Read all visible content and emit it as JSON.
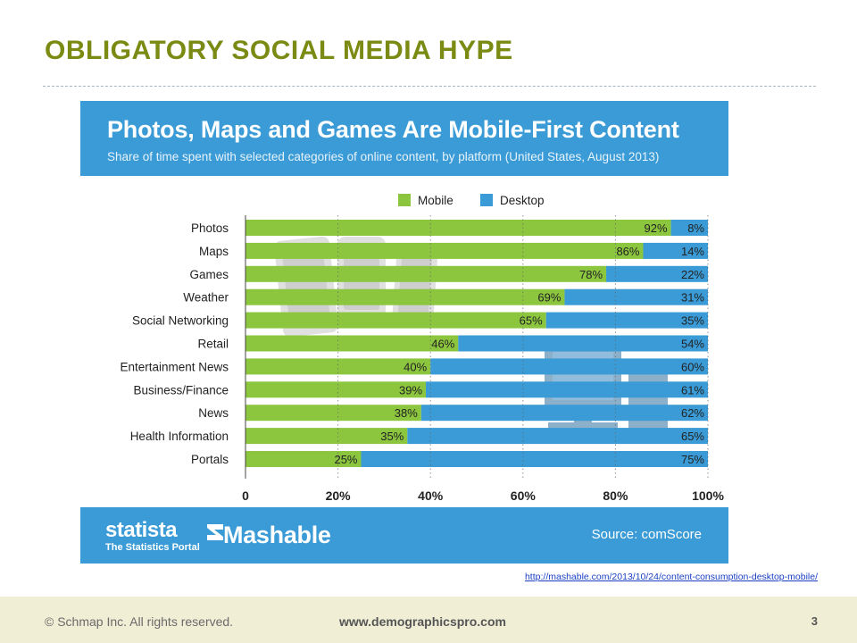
{
  "slide": {
    "title": "OBLIGATORY SOCIAL MEDIA HYPE",
    "link": "http://mashable.com/2013/10/24/content-consumption-desktop-mobile/",
    "footer": {
      "copyright": "© Schmap Inc. All rights reserved.",
      "website": "www.demographicspro.com",
      "page_number": "3"
    }
  },
  "infographic": {
    "footer": {
      "statista_name": "statista",
      "statista_tagline": "The Statistics Portal",
      "mashable": "Mashable",
      "source": "Source: comScore"
    }
  },
  "chart_data": {
    "type": "bar",
    "stacked": true,
    "orientation": "horizontal",
    "title": "Photos, Maps and Games Are Mobile-First Content",
    "subtitle": "Share of time spent with selected categories of online content, by platform (United States, August 2013)",
    "categories": [
      "Photos",
      "Maps",
      "Games",
      "Weather",
      "Social Networking",
      "Retail",
      "Entertainment News",
      "Business/Finance",
      "News",
      "Health Information",
      "Portals"
    ],
    "series": [
      {
        "name": "Mobile",
        "color": "#8cc63f",
        "values": [
          92,
          86,
          78,
          69,
          65,
          46,
          40,
          39,
          38,
          35,
          25
        ]
      },
      {
        "name": "Desktop",
        "color": "#3a9bd6",
        "values": [
          8,
          14,
          22,
          31,
          35,
          54,
          60,
          61,
          62,
          65,
          75
        ]
      }
    ],
    "unit": "%",
    "xlim": [
      0,
      100
    ],
    "xticks": [
      "0",
      "20%",
      "40%",
      "60%",
      "80%",
      "100%"
    ],
    "xtick_values": [
      0,
      20,
      40,
      60,
      80,
      100
    ],
    "grid": "vertical dotted",
    "legend_position": "top",
    "data_labels": true
  }
}
